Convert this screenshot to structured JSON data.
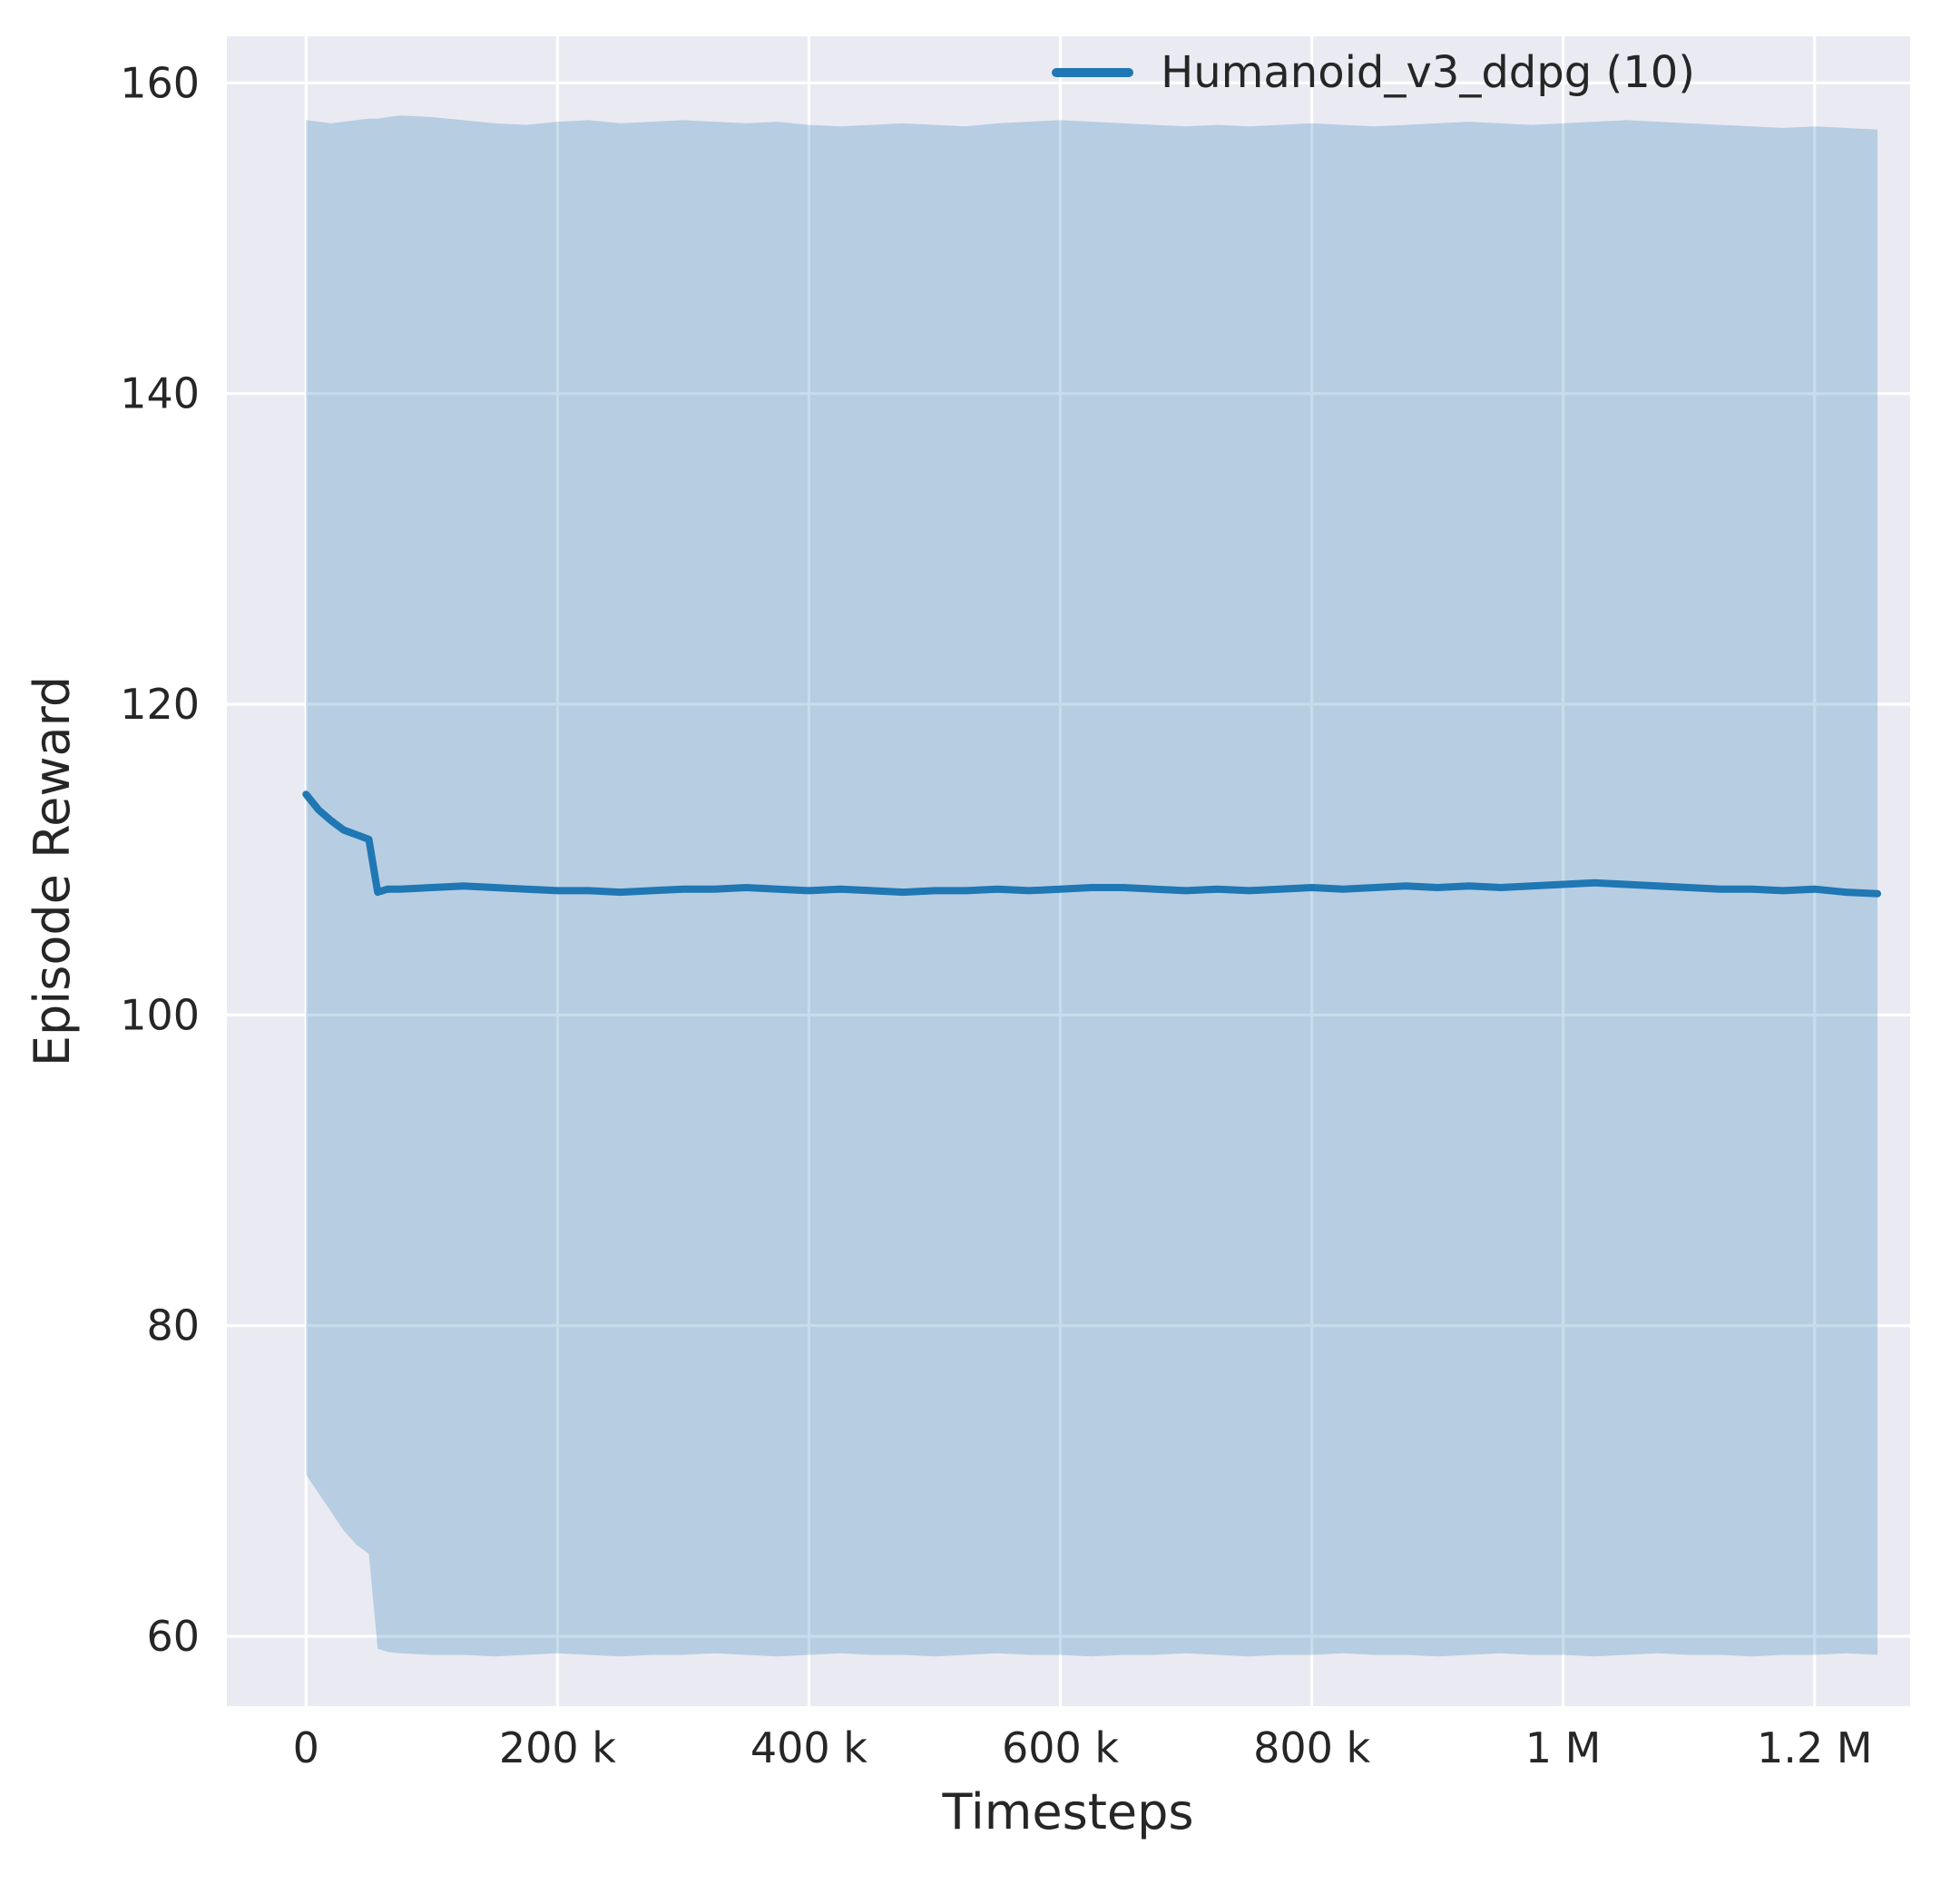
{
  "figure": {
    "background": "#ffffff",
    "plot_bg": "#eaeaf2",
    "grid_color": "#ffffff",
    "text_color": "#262626"
  },
  "chart_data": {
    "type": "line",
    "title": "",
    "xlabel": "Timesteps",
    "ylabel": "Episode Reward",
    "grid": true,
    "legend_position": "upper right",
    "xlim": [
      -63000,
      1276000
    ],
    "ylim": [
      55.5,
      163
    ],
    "xticks": {
      "values": [
        0,
        200000,
        400000,
        600000,
        800000,
        1000000,
        1200000
      ],
      "labels": [
        "0",
        "200 k",
        "400 k",
        "600 k",
        "800 k",
        "1 M",
        "1.2 M"
      ]
    },
    "yticks": {
      "values": [
        60,
        80,
        100,
        120,
        140,
        160
      ],
      "labels": [
        "60",
        "80",
        "100",
        "120",
        "140",
        "160"
      ]
    },
    "legend": [
      {
        "label": "Humanoid_v3_ddpg (10)",
        "color": "#1f77b4"
      }
    ],
    "series": [
      {
        "name": "Humanoid_v3_ddpg (10)",
        "color": "#1f77b4",
        "band_opacity": 0.25,
        "x": [
          0,
          10000,
          20000,
          30000,
          40000,
          50000,
          57000,
          65000,
          75000,
          100000,
          125000,
          150000,
          175000,
          200000,
          225000,
          250000,
          275000,
          300000,
          325000,
          350000,
          375000,
          400000,
          425000,
          450000,
          475000,
          500000,
          525000,
          550000,
          575000,
          600000,
          625000,
          650000,
          675000,
          700000,
          725000,
          750000,
          775000,
          800000,
          825000,
          850000,
          875000,
          900000,
          925000,
          950000,
          975000,
          1000000,
          1025000,
          1050000,
          1075000,
          1100000,
          1125000,
          1150000,
          1175000,
          1200000,
          1225000,
          1250000
        ],
        "mean": [
          114.2,
          113.2,
          112.5,
          111.9,
          111.6,
          111.3,
          107.9,
          108.1,
          108.1,
          108.2,
          108.3,
          108.2,
          108.1,
          108.0,
          108.0,
          107.9,
          108.0,
          108.1,
          108.1,
          108.2,
          108.1,
          108.0,
          108.1,
          108.0,
          107.9,
          108.0,
          108.0,
          108.1,
          108.0,
          108.1,
          108.2,
          108.2,
          108.1,
          108.0,
          108.1,
          108.0,
          108.1,
          108.2,
          108.1,
          108.2,
          108.3,
          108.2,
          108.3,
          108.2,
          108.3,
          108.4,
          108.5,
          108.4,
          108.3,
          108.2,
          108.1,
          108.1,
          108.0,
          108.1,
          107.9,
          107.8
        ],
        "upper": [
          157.6,
          157.5,
          157.4,
          157.5,
          157.6,
          157.7,
          157.7,
          157.8,
          157.9,
          157.8,
          157.6,
          157.4,
          157.3,
          157.5,
          157.6,
          157.4,
          157.5,
          157.6,
          157.5,
          157.4,
          157.5,
          157.3,
          157.2,
          157.3,
          157.4,
          157.3,
          157.2,
          157.4,
          157.5,
          157.6,
          157.5,
          157.4,
          157.3,
          157.2,
          157.3,
          157.2,
          157.3,
          157.4,
          157.3,
          157.2,
          157.3,
          157.4,
          157.5,
          157.4,
          157.3,
          157.4,
          157.5,
          157.6,
          157.5,
          157.4,
          157.3,
          157.2,
          157.1,
          157.2,
          157.1,
          157.0
        ],
        "lower": [
          70.4,
          69.2,
          68.0,
          66.8,
          65.9,
          65.3,
          59.2,
          59.0,
          58.9,
          58.8,
          58.8,
          58.7,
          58.8,
          58.9,
          58.8,
          58.7,
          58.8,
          58.8,
          58.9,
          58.8,
          58.7,
          58.8,
          58.9,
          58.8,
          58.8,
          58.7,
          58.8,
          58.9,
          58.8,
          58.8,
          58.7,
          58.8,
          58.8,
          58.9,
          58.8,
          58.7,
          58.8,
          58.8,
          58.9,
          58.8,
          58.8,
          58.7,
          58.8,
          58.9,
          58.8,
          58.8,
          58.7,
          58.8,
          58.9,
          58.8,
          58.8,
          58.7,
          58.8,
          58.8,
          58.9,
          58.8
        ]
      }
    ]
  }
}
